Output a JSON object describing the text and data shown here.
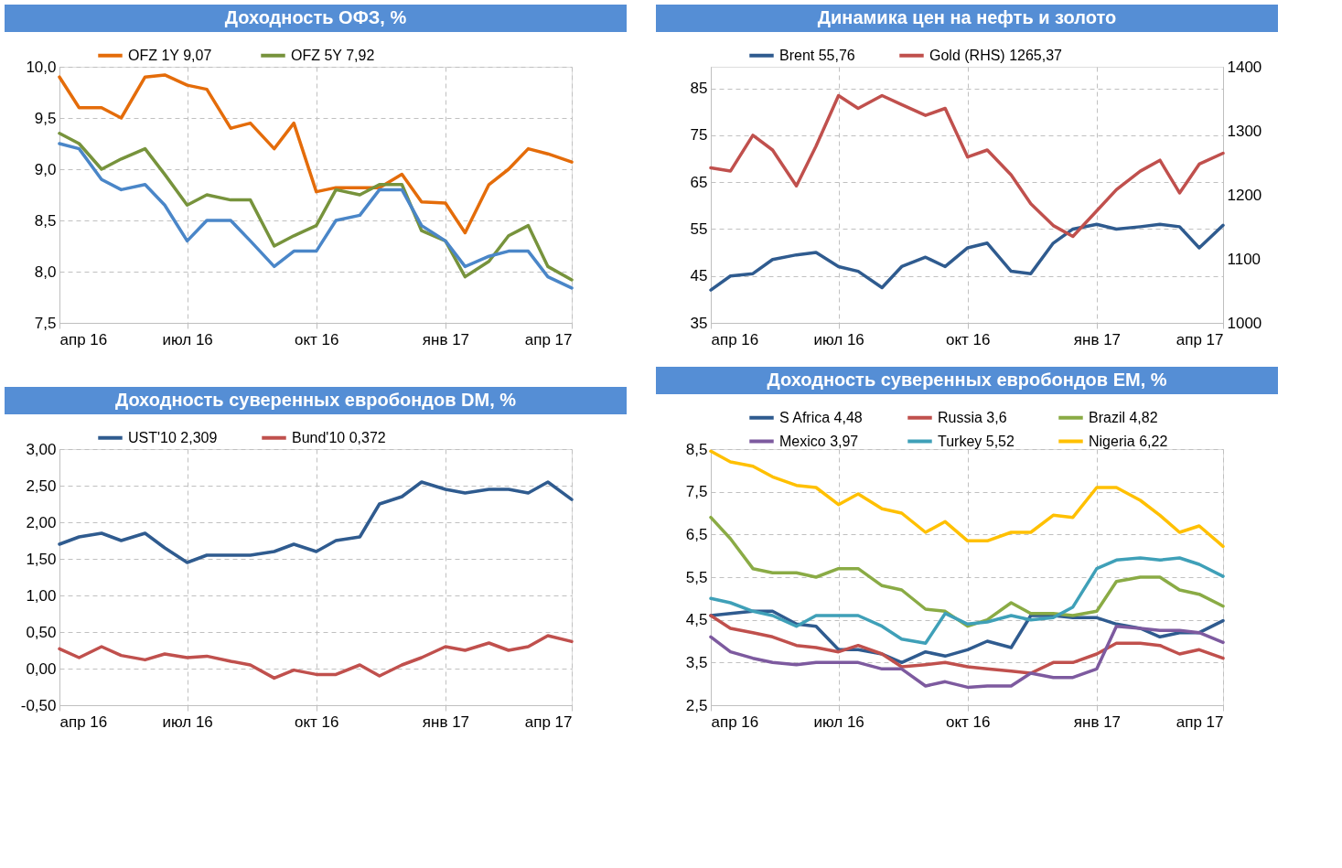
{
  "chart_data": [
    {
      "type": "line",
      "title": "Доходность ОФЗ, %",
      "x": [
        "2016-04-01",
        "2016-04-15",
        "2016-05-01",
        "2016-05-15",
        "2016-06-01",
        "2016-06-15",
        "2016-07-01",
        "2016-07-15",
        "2016-08-01",
        "2016-08-15",
        "2016-09-01",
        "2016-09-15",
        "2016-10-01",
        "2016-10-15",
        "2016-11-01",
        "2016-11-15",
        "2016-12-01",
        "2016-12-15",
        "2017-01-01",
        "2017-01-15",
        "2017-02-01",
        "2017-02-15",
        "2017-03-01",
        "2017-03-15",
        "2017-04-01"
      ],
      "xlim": [
        "2016-04-01",
        "2017-04-01"
      ],
      "xticks": [
        {
          "value": "2016-04-01",
          "label": "апр 16"
        },
        {
          "value": "2016-07-01",
          "label": "июл 16"
        },
        {
          "value": "2016-10-01",
          "label": "окт 16"
        },
        {
          "value": "2017-01-01",
          "label": "янв 17"
        },
        {
          "value": "2017-04-01",
          "label": "апр 17"
        }
      ],
      "ylim": [
        7.5,
        10.0
      ],
      "yticks": [
        {
          "value": 7.5,
          "label": "7,5"
        },
        {
          "value": 8.0,
          "label": "8,0"
        },
        {
          "value": 8.5,
          "label": "8,5"
        },
        {
          "value": 9.0,
          "label": "9,0"
        },
        {
          "value": 9.5,
          "label": "9,5"
        },
        {
          "value": 10.0,
          "label": "10,0"
        }
      ],
      "grid": true,
      "legend": "top",
      "series": [
        {
          "name": "OFZ 1Y  9,07",
          "color": "#e46c0a",
          "values": [
            9.9,
            9.6,
            9.6,
            9.5,
            9.9,
            9.92,
            9.82,
            9.78,
            9.4,
            9.45,
            9.2,
            9.45,
            8.78,
            8.82,
            8.82,
            8.82,
            8.95,
            8.68,
            8.67,
            8.38,
            8.85,
            9.0,
            9.2,
            9.15,
            9.07
          ]
        },
        {
          "name": "OFZ 5Y  7,92",
          "color": "#77933c",
          "values": [
            9.35,
            9.25,
            9.0,
            9.1,
            9.2,
            8.95,
            8.65,
            8.75,
            8.7,
            8.7,
            8.25,
            8.35,
            8.45,
            8.8,
            8.75,
            8.85,
            8.85,
            8.4,
            8.3,
            7.95,
            8.1,
            8.35,
            8.45,
            8.05,
            7.92
          ]
        },
        {
          "color": "#4a86c8",
          "values": [
            9.25,
            9.2,
            8.9,
            8.8,
            8.85,
            8.65,
            8.3,
            8.5,
            8.5,
            8.3,
            8.05,
            8.2,
            8.2,
            8.5,
            8.55,
            8.8,
            8.8,
            8.45,
            8.3,
            8.05,
            8.15,
            8.2,
            8.2,
            7.95,
            7.84
          ]
        }
      ]
    },
    {
      "type": "line",
      "title": "Динамика цен на нефть и золото",
      "x": [
        "2016-04-01",
        "2016-04-15",
        "2016-05-01",
        "2016-05-15",
        "2016-06-01",
        "2016-06-15",
        "2016-07-01",
        "2016-07-15",
        "2016-08-01",
        "2016-08-15",
        "2016-09-01",
        "2016-09-15",
        "2016-10-01",
        "2016-10-15",
        "2016-11-01",
        "2016-11-15",
        "2016-12-01",
        "2016-12-15",
        "2017-01-01",
        "2017-01-15",
        "2017-02-01",
        "2017-02-15",
        "2017-03-01",
        "2017-03-15",
        "2017-04-01"
      ],
      "xlim": [
        "2016-04-01",
        "2017-04-01"
      ],
      "xticks": [
        {
          "value": "2016-04-01",
          "label": "апр 16"
        },
        {
          "value": "2016-07-01",
          "label": "июл 16"
        },
        {
          "value": "2016-10-01",
          "label": "окт 16"
        },
        {
          "value": "2017-01-01",
          "label": "янв 17"
        },
        {
          "value": "2017-04-01",
          "label": "апр 17"
        }
      ],
      "ylim": [
        35,
        89.6
      ],
      "yticks": [
        35,
        45,
        55,
        65,
        75,
        85
      ],
      "y2lim": [
        1000,
        1400
      ],
      "y2ticks": [
        1000,
        1100,
        1200,
        1300,
        1400
      ],
      "grid": true,
      "legend": "top",
      "series": [
        {
          "name": "Brent 55,76",
          "color": "#2f5b8f",
          "values": [
            42,
            45,
            45.5,
            48.5,
            49.5,
            50,
            47,
            46,
            42.5,
            47,
            49,
            47,
            51,
            52,
            46,
            45.5,
            52,
            55,
            56,
            55,
            55.5,
            56,
            55.5,
            51,
            55.8
          ]
        },
        {
          "name": "Gold (RHS)  1265,37",
          "color": "#c0504d",
          "axis": "y2",
          "values": [
            1242,
            1237,
            1293,
            1270,
            1214,
            1276,
            1355,
            1335,
            1355,
            1341,
            1324,
            1335,
            1259,
            1270,
            1231,
            1186,
            1152,
            1135,
            1175,
            1208,
            1237,
            1254,
            1203,
            1248,
            1265
          ]
        }
      ]
    },
    {
      "type": "line",
      "title": "Доходность суверенных евробондов DM, %",
      "x": [
        "2016-04-01",
        "2016-04-15",
        "2016-05-01",
        "2016-05-15",
        "2016-06-01",
        "2016-06-15",
        "2016-07-01",
        "2016-07-15",
        "2016-08-01",
        "2016-08-15",
        "2016-09-01",
        "2016-09-15",
        "2016-10-01",
        "2016-10-15",
        "2016-11-01",
        "2016-11-15",
        "2016-12-01",
        "2016-12-15",
        "2017-01-01",
        "2017-01-15",
        "2017-02-01",
        "2017-02-15",
        "2017-03-01",
        "2017-03-15",
        "2017-04-01"
      ],
      "xlim": [
        "2016-04-01",
        "2017-04-01"
      ],
      "xticks": [
        {
          "value": "2016-04-01",
          "label": "апр 16"
        },
        {
          "value": "2016-07-01",
          "label": "июл 16"
        },
        {
          "value": "2016-10-01",
          "label": "окт 16"
        },
        {
          "value": "2017-01-01",
          "label": "янв 17"
        },
        {
          "value": "2017-04-01",
          "label": "апр 17"
        }
      ],
      "ylim": [
        -0.5,
        3.0
      ],
      "yticks": [
        {
          "value": -0.5,
          "label": "-0,50"
        },
        {
          "value": 0,
          "label": "0,00"
        },
        {
          "value": 0.5,
          "label": "0,50"
        },
        {
          "value": 1.0,
          "label": "1,00"
        },
        {
          "value": 1.5,
          "label": "1,50"
        },
        {
          "value": 2.0,
          "label": "2,00"
        },
        {
          "value": 2.5,
          "label": "2,50"
        },
        {
          "value": 3.0,
          "label": "3,00"
        }
      ],
      "grid": true,
      "legend": "top",
      "series": [
        {
          "name": "UST'10 2,309",
          "color": "#2f5b8f",
          "values": [
            1.7,
            1.8,
            1.85,
            1.75,
            1.85,
            1.65,
            1.45,
            1.55,
            1.55,
            1.55,
            1.6,
            1.7,
            1.6,
            1.75,
            1.8,
            2.25,
            2.35,
            2.55,
            2.45,
            2.4,
            2.45,
            2.45,
            2.4,
            2.55,
            2.31
          ]
        },
        {
          "name": "Bund'10 0,372",
          "color": "#c0504d",
          "values": [
            0.27,
            0.15,
            0.3,
            0.18,
            0.12,
            0.2,
            0.15,
            0.17,
            0.1,
            0.05,
            -0.13,
            -0.02,
            -0.08,
            -0.08,
            0.05,
            -0.1,
            0.05,
            0.15,
            0.3,
            0.25,
            0.35,
            0.25,
            0.3,
            0.45,
            0.37
          ]
        }
      ]
    },
    {
      "type": "line",
      "title": "Доходность суверенных евробондов EM, %",
      "x": [
        "2016-04-01",
        "2016-04-15",
        "2016-05-01",
        "2016-05-15",
        "2016-06-01",
        "2016-06-15",
        "2016-07-01",
        "2016-07-15",
        "2016-08-01",
        "2016-08-15",
        "2016-09-01",
        "2016-09-15",
        "2016-10-01",
        "2016-10-15",
        "2016-11-01",
        "2016-11-15",
        "2016-12-01",
        "2016-12-15",
        "2017-01-01",
        "2017-01-15",
        "2017-02-01",
        "2017-02-15",
        "2017-03-01",
        "2017-03-15",
        "2017-04-01"
      ],
      "xlim": [
        "2016-04-01",
        "2017-04-01"
      ],
      "xticks": [
        {
          "value": "2016-04-01",
          "label": "апр 16"
        },
        {
          "value": "2016-07-01",
          "label": "июл 16"
        },
        {
          "value": "2016-10-01",
          "label": "окт 16"
        },
        {
          "value": "2017-01-01",
          "label": "янв 17"
        },
        {
          "value": "2017-04-01",
          "label": "апр 17"
        }
      ],
      "ylim": [
        2.5,
        8.5
      ],
      "yticks": [
        {
          "value": 2.5,
          "label": "2,5"
        },
        {
          "value": 3.5,
          "label": "3,5"
        },
        {
          "value": 4.5,
          "label": "4,5"
        },
        {
          "value": 5.5,
          "label": "5,5"
        },
        {
          "value": 6.5,
          "label": "6,5"
        },
        {
          "value": 7.5,
          "label": "7,5"
        },
        {
          "value": 8.5,
          "label": "8,5"
        }
      ],
      "grid": true,
      "legend": "top",
      "series": [
        {
          "name": "S Africa 4,48",
          "color": "#2f5b8f",
          "values": [
            4.6,
            4.65,
            4.7,
            4.7,
            4.4,
            4.35,
            3.8,
            3.8,
            3.7,
            3.5,
            3.75,
            3.65,
            3.8,
            4.0,
            3.85,
            4.6,
            4.6,
            4.55,
            4.55,
            4.4,
            4.3,
            4.1,
            4.2,
            4.2,
            4.48
          ]
        },
        {
          "name": "Russia 3,6",
          "color": "#c0504d",
          "values": [
            4.6,
            4.3,
            4.2,
            4.1,
            3.9,
            3.85,
            3.75,
            3.9,
            3.7,
            3.4,
            3.45,
            3.5,
            3.4,
            3.35,
            3.3,
            3.25,
            3.5,
            3.5,
            3.7,
            3.95,
            3.95,
            3.9,
            3.7,
            3.8,
            3.6
          ]
        },
        {
          "name": "Brazil 4,82",
          "color": "#8aab45",
          "values": [
            6.9,
            6.4,
            5.7,
            5.6,
            5.6,
            5.5,
            5.7,
            5.7,
            5.3,
            5.2,
            4.75,
            4.7,
            4.35,
            4.5,
            4.9,
            4.65,
            4.65,
            4.6,
            4.7,
            5.4,
            5.5,
            5.5,
            5.2,
            5.1,
            4.82
          ]
        },
        {
          "name": "Mexico 3,97",
          "color": "#7d5a9f",
          "values": [
            4.1,
            3.75,
            3.6,
            3.5,
            3.45,
            3.5,
            3.5,
            3.5,
            3.35,
            3.35,
            2.95,
            3.05,
            2.92,
            2.95,
            2.95,
            3.25,
            3.15,
            3.15,
            3.35,
            4.35,
            4.3,
            4.25,
            4.25,
            4.2,
            3.97
          ]
        },
        {
          "name": "Turkey 5,52",
          "color": "#3fa0b8",
          "values": [
            5.0,
            4.9,
            4.7,
            4.6,
            4.35,
            4.6,
            4.6,
            4.6,
            4.35,
            4.05,
            3.95,
            4.65,
            4.4,
            4.45,
            4.6,
            4.5,
            4.55,
            4.8,
            5.7,
            5.9,
            5.95,
            5.9,
            5.95,
            5.8,
            5.52
          ]
        },
        {
          "name": "Nigeria 6,22",
          "color": "#ffc000",
          "values": [
            8.45,
            8.2,
            8.1,
            7.85,
            7.65,
            7.6,
            7.2,
            7.45,
            7.1,
            7.0,
            6.55,
            6.8,
            6.35,
            6.35,
            6.55,
            6.55,
            6.95,
            6.9,
            7.6,
            7.6,
            7.3,
            6.95,
            6.55,
            6.7,
            6.22
          ]
        }
      ]
    }
  ]
}
